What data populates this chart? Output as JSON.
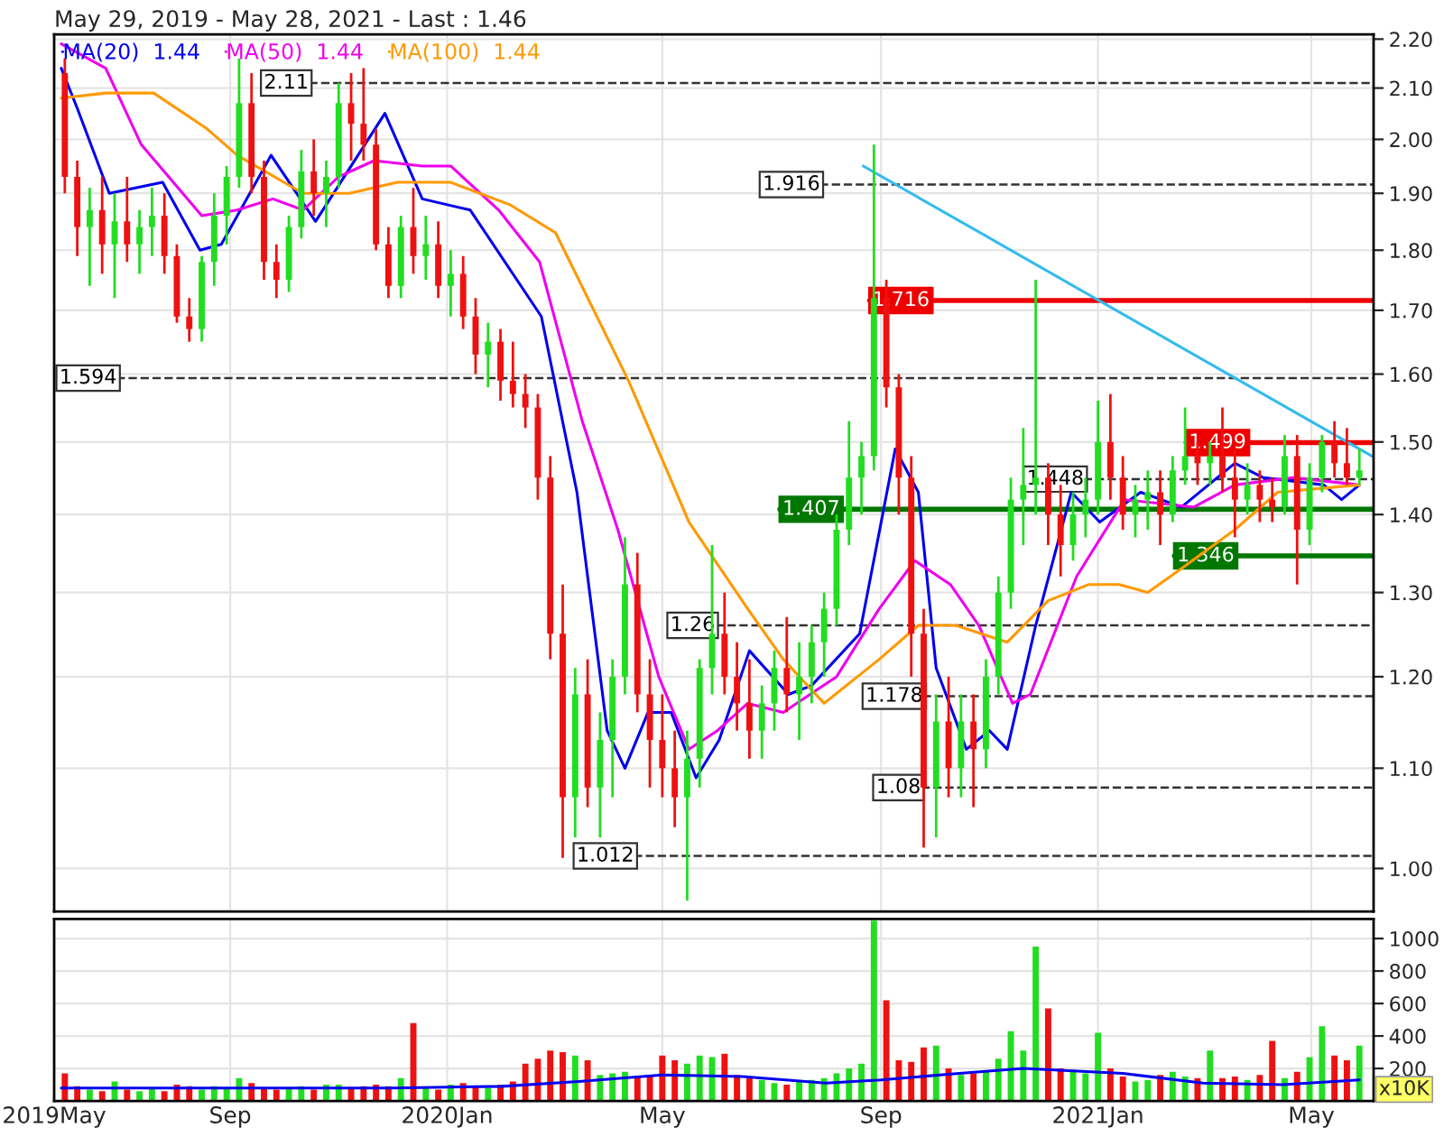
{
  "chart_data": [
    {
      "type": "candlestick",
      "title": "May 29, 2019 - May 28, 2021 - Last : 1.46",
      "x": [
        "2019-05-31",
        "2019-06-07",
        "2019-06-14",
        "2019-06-21",
        "2019-06-28",
        "2019-07-05",
        "2019-07-12",
        "2019-07-19",
        "2019-07-26",
        "2019-08-02",
        "2019-08-09",
        "2019-08-16",
        "2019-08-23",
        "2019-08-30",
        "2019-09-06",
        "2019-09-13",
        "2019-09-20",
        "2019-09-27",
        "2019-10-04",
        "2019-10-11",
        "2019-10-18",
        "2019-10-25",
        "2019-11-01",
        "2019-11-08",
        "2019-11-15",
        "2019-11-22",
        "2019-11-29",
        "2019-12-06",
        "2019-12-13",
        "2019-12-20",
        "2019-12-27",
        "2020-01-03",
        "2020-01-10",
        "2020-01-17",
        "2020-01-24",
        "2020-01-31",
        "2020-02-07",
        "2020-02-14",
        "2020-02-21",
        "2020-02-28",
        "2020-03-06",
        "2020-03-13",
        "2020-03-20",
        "2020-03-27",
        "2020-04-03",
        "2020-04-10",
        "2020-04-17",
        "2020-04-24",
        "2020-05-01",
        "2020-05-08",
        "2020-05-15",
        "2020-05-22",
        "2020-05-29",
        "2020-06-05",
        "2020-06-12",
        "2020-06-19",
        "2020-06-26",
        "2020-07-03",
        "2020-07-10",
        "2020-07-17",
        "2020-07-24",
        "2020-07-31",
        "2020-08-07",
        "2020-08-14",
        "2020-08-21",
        "2020-08-28",
        "2020-09-04",
        "2020-09-11",
        "2020-09-18",
        "2020-09-25",
        "2020-10-02",
        "2020-10-09",
        "2020-10-16",
        "2020-10-23",
        "2020-10-30",
        "2020-11-06",
        "2020-11-13",
        "2020-11-20",
        "2020-11-27",
        "2020-12-04",
        "2020-12-11",
        "2020-12-18",
        "2020-12-25",
        "2021-01-01",
        "2021-01-08",
        "2021-01-15",
        "2021-01-22",
        "2021-01-29",
        "2021-02-05",
        "2021-02-12",
        "2021-02-19",
        "2021-02-26",
        "2021-03-05",
        "2021-03-12",
        "2021-03-19",
        "2021-03-26",
        "2021-04-02",
        "2021-04-09",
        "2021-04-16",
        "2021-04-23",
        "2021-04-30",
        "2021-05-07",
        "2021-05-14",
        "2021-05-21",
        "2021-05-28"
      ],
      "ohlc": [
        [
          2.13,
          2.16,
          1.9,
          1.93
        ],
        [
          1.93,
          1.96,
          1.79,
          1.84
        ],
        [
          1.84,
          1.91,
          1.74,
          1.87
        ],
        [
          1.87,
          1.93,
          1.76,
          1.81
        ],
        [
          1.81,
          1.9,
          1.72,
          1.85
        ],
        [
          1.85,
          1.93,
          1.78,
          1.81
        ],
        [
          1.81,
          1.87,
          1.76,
          1.84
        ],
        [
          1.84,
          1.91,
          1.79,
          1.86
        ],
        [
          1.86,
          1.9,
          1.76,
          1.79
        ],
        [
          1.79,
          1.81,
          1.68,
          1.69
        ],
        [
          1.69,
          1.72,
          1.65,
          1.67
        ],
        [
          1.67,
          1.79,
          1.65,
          1.78
        ],
        [
          1.78,
          1.9,
          1.74,
          1.86
        ],
        [
          1.86,
          1.95,
          1.81,
          1.93
        ],
        [
          1.93,
          2.16,
          1.91,
          2.07
        ],
        [
          2.07,
          2.13,
          1.9,
          1.93
        ],
        [
          1.93,
          1.96,
          1.75,
          1.78
        ],
        [
          1.78,
          1.81,
          1.72,
          1.75
        ],
        [
          1.75,
          1.86,
          1.73,
          1.84
        ],
        [
          1.84,
          1.98,
          1.82,
          1.94
        ],
        [
          1.94,
          2.0,
          1.86,
          1.9
        ],
        [
          1.9,
          1.96,
          1.84,
          1.93
        ],
        [
          1.93,
          2.11,
          1.91,
          2.07
        ],
        [
          2.07,
          2.13,
          1.96,
          2.03
        ],
        [
          2.03,
          2.14,
          1.96,
          1.99
        ],
        [
          1.99,
          2.02,
          1.8,
          1.81
        ],
        [
          1.81,
          1.84,
          1.72,
          1.74
        ],
        [
          1.74,
          1.86,
          1.72,
          1.84
        ],
        [
          1.84,
          1.91,
          1.76,
          1.79
        ],
        [
          1.79,
          1.86,
          1.75,
          1.81
        ],
        [
          1.81,
          1.85,
          1.72,
          1.74
        ],
        [
          1.74,
          1.8,
          1.69,
          1.76
        ],
        [
          1.76,
          1.79,
          1.67,
          1.69
        ],
        [
          1.69,
          1.72,
          1.6,
          1.63
        ],
        [
          1.63,
          1.68,
          1.58,
          1.65
        ],
        [
          1.65,
          1.67,
          1.56,
          1.59
        ],
        [
          1.59,
          1.65,
          1.55,
          1.57
        ],
        [
          1.57,
          1.6,
          1.52,
          1.55
        ],
        [
          1.55,
          1.57,
          1.42,
          1.45
        ],
        [
          1.45,
          1.48,
          1.22,
          1.25
        ],
        [
          1.25,
          1.31,
          1.01,
          1.07
        ],
        [
          1.07,
          1.21,
          1.03,
          1.18
        ],
        [
          1.18,
          1.22,
          1.06,
          1.08
        ],
        [
          1.08,
          1.16,
          1.03,
          1.13
        ],
        [
          1.13,
          1.22,
          1.07,
          1.2
        ],
        [
          1.2,
          1.37,
          1.18,
          1.31
        ],
        [
          1.31,
          1.35,
          1.16,
          1.18
        ],
        [
          1.18,
          1.22,
          1.08,
          1.13
        ],
        [
          1.13,
          1.18,
          1.07,
          1.1
        ],
        [
          1.1,
          1.14,
          1.04,
          1.07
        ],
        [
          1.07,
          1.14,
          0.97,
          1.11
        ],
        [
          1.11,
          1.22,
          1.08,
          1.21
        ],
        [
          1.21,
          1.36,
          1.18,
          1.25
        ],
        [
          1.25,
          1.3,
          1.18,
          1.2
        ],
        [
          1.2,
          1.24,
          1.14,
          1.17
        ],
        [
          1.17,
          1.22,
          1.11,
          1.14
        ],
        [
          1.14,
          1.19,
          1.11,
          1.17
        ],
        [
          1.17,
          1.23,
          1.14,
          1.21
        ],
        [
          1.21,
          1.27,
          1.16,
          1.18
        ],
        [
          1.18,
          1.24,
          1.13,
          1.2
        ],
        [
          1.2,
          1.26,
          1.17,
          1.24
        ],
        [
          1.24,
          1.3,
          1.2,
          1.28
        ],
        [
          1.28,
          1.4,
          1.26,
          1.38
        ],
        [
          1.38,
          1.53,
          1.36,
          1.45
        ],
        [
          1.45,
          1.5,
          1.4,
          1.48
        ],
        [
          1.48,
          1.99,
          1.46,
          1.72
        ],
        [
          1.72,
          1.75,
          1.55,
          1.58
        ],
        [
          1.58,
          1.6,
          1.4,
          1.45
        ],
        [
          1.45,
          1.48,
          1.2,
          1.25
        ],
        [
          1.25,
          1.28,
          1.02,
          1.08
        ],
        [
          1.08,
          1.18,
          1.03,
          1.15
        ],
        [
          1.15,
          1.2,
          1.07,
          1.1
        ],
        [
          1.1,
          1.18,
          1.07,
          1.15
        ],
        [
          1.15,
          1.18,
          1.06,
          1.12
        ],
        [
          1.12,
          1.22,
          1.1,
          1.2
        ],
        [
          1.2,
          1.32,
          1.18,
          1.3
        ],
        [
          1.3,
          1.45,
          1.28,
          1.42
        ],
        [
          1.42,
          1.52,
          1.36,
          1.44
        ],
        [
          1.44,
          1.75,
          1.4,
          1.45
        ],
        [
          1.45,
          1.47,
          1.36,
          1.4
        ],
        [
          1.4,
          1.44,
          1.32,
          1.36
        ],
        [
          1.36,
          1.43,
          1.34,
          1.4
        ],
        [
          1.4,
          1.45,
          1.37,
          1.42
        ],
        [
          1.42,
          1.56,
          1.4,
          1.5
        ],
        [
          1.5,
          1.57,
          1.42,
          1.45
        ],
        [
          1.45,
          1.48,
          1.38,
          1.4
        ],
        [
          1.4,
          1.44,
          1.37,
          1.42
        ],
        [
          1.42,
          1.46,
          1.38,
          1.43
        ],
        [
          1.43,
          1.46,
          1.36,
          1.4
        ],
        [
          1.4,
          1.48,
          1.39,
          1.46
        ],
        [
          1.46,
          1.55,
          1.44,
          1.48
        ],
        [
          1.48,
          1.5,
          1.44,
          1.47
        ],
        [
          1.47,
          1.5,
          1.44,
          1.48
        ],
        [
          1.48,
          1.55,
          1.43,
          1.45
        ],
        [
          1.45,
          1.49,
          1.37,
          1.42
        ],
        [
          1.42,
          1.47,
          1.4,
          1.44
        ],
        [
          1.44,
          1.46,
          1.39,
          1.42
        ],
        [
          1.42,
          1.45,
          1.39,
          1.41
        ],
        [
          1.41,
          1.51,
          1.4,
          1.48
        ],
        [
          1.48,
          1.51,
          1.31,
          1.38
        ],
        [
          1.38,
          1.47,
          1.36,
          1.45
        ],
        [
          1.45,
          1.51,
          1.43,
          1.5
        ],
        [
          1.5,
          1.53,
          1.45,
          1.47
        ],
        [
          1.47,
          1.52,
          1.44,
          1.45
        ],
        [
          1.45,
          1.49,
          1.44,
          1.46
        ]
      ],
      "colors": [
        "#ee1111",
        "#ee1111",
        "#22dd22",
        "#ee1111",
        "#22dd22",
        "#ee1111",
        "#22dd22",
        "#22dd22",
        "#ee1111",
        "#ee1111",
        "#ee1111",
        "#22dd22",
        "#22dd22",
        "#22dd22",
        "#22dd22",
        "#ee1111",
        "#ee1111",
        "#ee1111",
        "#22dd22",
        "#22dd22",
        "#ee1111",
        "#22dd22",
        "#22dd22",
        "#ee1111",
        "#ee1111",
        "#ee1111",
        "#ee1111",
        "#22dd22",
        "#ee1111",
        "#22dd22",
        "#ee1111",
        "#22dd22",
        "#ee1111",
        "#ee1111",
        "#22dd22",
        "#ee1111",
        "#ee1111",
        "#ee1111",
        "#ee1111",
        "#ee1111",
        "#ee1111",
        "#22dd22",
        "#ee1111",
        "#22dd22",
        "#22dd22",
        "#22dd22",
        "#ee1111",
        "#ee1111",
        "#ee1111",
        "#ee1111",
        "#22dd22",
        "#22dd22",
        "#22dd22",
        "#ee1111",
        "#ee1111",
        "#ee1111",
        "#22dd22",
        "#22dd22",
        "#ee1111",
        "#22dd22",
        "#22dd22",
        "#22dd22",
        "#22dd22",
        "#22dd22",
        "#22dd22",
        "#22dd22",
        "#ee1111",
        "#ee1111",
        "#ee1111",
        "#ee1111",
        "#22dd22",
        "#ee1111",
        "#22dd22",
        "#ee1111",
        "#22dd22",
        "#22dd22",
        "#22dd22",
        "#22dd22",
        "#22dd22",
        "#ee1111",
        "#ee1111",
        "#22dd22",
        "#22dd22",
        "#22dd22",
        "#ee1111",
        "#ee1111",
        "#22dd22",
        "#22dd22",
        "#ee1111",
        "#22dd22",
        "#22dd22",
        "#ee1111",
        "#22dd22",
        "#ee1111",
        "#ee1111",
        "#22dd22",
        "#ee1111",
        "#ee1111",
        "#22dd22",
        "#ee1111",
        "#22dd22",
        "#22dd22",
        "#ee1111",
        "#ee1111",
        "#22dd22"
      ],
      "series": [
        {
          "type": "line",
          "name": "MA(20)  1.44",
          "color": "#0000ee",
          "x": [
            "2019-05-29",
            "2019-06-07",
            "2019-06-25",
            "2019-07-25",
            "2019-08-15",
            "2019-08-27",
            "2019-09-24",
            "2019-10-19",
            "2019-11-27",
            "2019-12-18",
            "2020-01-14",
            "2020-02-23",
            "2020-03-14",
            "2020-03-31",
            "2020-04-10",
            "2020-04-23",
            "2020-05-06",
            "2020-05-20",
            "2020-06-02",
            "2020-06-19",
            "2020-07-11",
            "2020-07-24",
            "2020-08-20",
            "2020-09-09",
            "2020-09-22",
            "2020-10-02",
            "2020-10-19",
            "2020-11-01",
            "2020-11-11",
            "2020-11-27",
            "2020-12-17",
            "2021-01-02",
            "2021-01-25",
            "2021-02-17",
            "2021-03-19",
            "2021-04-04",
            "2021-05-08",
            "2021-05-18",
            "2021-05-28"
          ],
          "values": [
            2.14,
            2.06,
            1.9,
            1.92,
            1.8,
            1.81,
            1.97,
            1.85,
            2.05,
            1.89,
            1.87,
            1.69,
            1.43,
            1.14,
            1.1,
            1.16,
            1.16,
            1.09,
            1.13,
            1.23,
            1.18,
            1.19,
            1.25,
            1.49,
            1.43,
            1.21,
            1.12,
            1.14,
            1.12,
            1.26,
            1.43,
            1.39,
            1.43,
            1.41,
            1.47,
            1.45,
            1.44,
            1.42,
            1.44
          ]
        },
        {
          "type": "line",
          "name": "MA(50)  1.44",
          "color": "#ee00ee",
          "x": [
            "2019-05-29",
            "2019-06-23",
            "2019-07-13",
            "2019-08-16",
            "2019-09-05",
            "2019-09-25",
            "2019-10-12",
            "2019-11-01",
            "2019-11-21",
            "2019-12-18",
            "2020-01-03",
            "2020-01-30",
            "2020-02-22",
            "2020-03-17",
            "2020-04-06",
            "2020-04-29",
            "2020-05-16",
            "2020-06-01",
            "2020-06-18",
            "2020-07-08",
            "2020-08-07",
            "2020-08-31",
            "2020-09-20",
            "2020-10-10",
            "2020-10-26",
            "2020-11-14",
            "2020-11-24",
            "2020-12-20",
            "2021-01-16",
            "2021-02-24",
            "2021-03-19",
            "2021-04-21",
            "2021-05-28"
          ],
          "values": [
            2.19,
            2.14,
            1.99,
            1.86,
            1.87,
            1.89,
            1.87,
            1.93,
            1.96,
            1.95,
            1.95,
            1.87,
            1.78,
            1.53,
            1.38,
            1.2,
            1.12,
            1.14,
            1.17,
            1.16,
            1.2,
            1.28,
            1.34,
            1.31,
            1.26,
            1.17,
            1.18,
            1.32,
            1.42,
            1.41,
            1.44,
            1.45,
            1.44
          ]
        },
        {
          "type": "line",
          "name": "MA(100)  1.44",
          "color": "#ff9900",
          "x": [
            "2019-05-29",
            "2019-06-23",
            "2019-07-20",
            "2019-08-19",
            "2019-09-05",
            "2019-10-12",
            "2019-11-07",
            "2019-12-04",
            "2020-01-03",
            "2020-02-05",
            "2020-03-02",
            "2020-04-12",
            "2020-05-16",
            "2020-06-18",
            "2020-07-08",
            "2020-07-31",
            "2020-08-31",
            "2020-09-22",
            "2020-10-13",
            "2020-11-11",
            "2020-12-04",
            "2020-12-27",
            "2021-01-13",
            "2021-01-29",
            "2021-02-17",
            "2021-03-19",
            "2021-04-12",
            "2021-05-28"
          ],
          "values": [
            2.08,
            2.09,
            2.09,
            2.02,
            1.97,
            1.9,
            1.9,
            1.92,
            1.92,
            1.88,
            1.83,
            1.59,
            1.39,
            1.28,
            1.22,
            1.17,
            1.22,
            1.26,
            1.26,
            1.24,
            1.29,
            1.31,
            1.31,
            1.3,
            1.33,
            1.38,
            1.43,
            1.44
          ]
        },
        {
          "type": "line",
          "color": "#33bbee",
          "x": [
            "2020-08-22",
            "2021-06-04"
          ],
          "values": [
            1.95,
            1.48
          ]
        }
      ],
      "ref_lines": [
        {
          "axis": "y",
          "value": 2.11,
          "label": "2.11",
          "line_style": "dashed"
        },
        {
          "axis": "y",
          "value": 1.916,
          "label": "1.916",
          "line_style": "dashed"
        },
        {
          "axis": "y",
          "value": 1.716,
          "label": "1.716",
          "color": "#ee0000",
          "line_style": "solid"
        },
        {
          "axis": "y",
          "value": 1.594,
          "label": "1.594",
          "line_style": "dashed"
        },
        {
          "axis": "y",
          "value": 1.499,
          "label": "1.499",
          "color": "#ee0000",
          "line_style": "solid"
        },
        {
          "axis": "y",
          "value": 1.448,
          "label": "1.448",
          "line_style": "dashed"
        },
        {
          "axis": "y",
          "value": 1.407,
          "label": "1.407",
          "color": "#007700",
          "line_style": "solid"
        },
        {
          "axis": "y",
          "value": 1.346,
          "label": "1.346",
          "color": "#007700",
          "line_style": "solid"
        },
        {
          "axis": "y",
          "value": 1.26,
          "label": "1.26",
          "line_style": "dashed"
        },
        {
          "axis": "y",
          "value": 1.178,
          "label": "1.178",
          "line_style": "dashed"
        },
        {
          "axis": "y",
          "value": 1.08,
          "label": "1.08",
          "line_style": "dashed"
        },
        {
          "axis": "y",
          "value": 1.012,
          "label": "1.012",
          "line_style": "dashed"
        }
      ],
      "log": "y",
      "xlim": [
        "2019-05-25",
        "2021-06-05"
      ],
      "ylim": [
        0.96,
        2.21
      ],
      "yticks": [
        {
          "value": 1.0,
          "label": "1.00"
        },
        {
          "value": 1.1,
          "label": "1.10"
        },
        {
          "value": 1.2,
          "label": "1.20"
        },
        {
          "value": 1.3,
          "label": "1.30"
        },
        {
          "value": 1.4,
          "label": "1.40"
        },
        {
          "value": 1.5,
          "label": "1.50"
        },
        {
          "value": 1.6,
          "label": "1.60"
        },
        {
          "value": 1.7,
          "label": "1.70"
        },
        {
          "value": 1.8,
          "label": "1.80"
        },
        {
          "value": 1.9,
          "label": "1.90"
        },
        {
          "value": 2.0,
          "label": "2.00"
        },
        {
          "value": 2.1,
          "label": "2.10"
        },
        {
          "value": 2.2,
          "label": "2.20"
        }
      ],
      "xticks": [
        {
          "value": "2019-09-01",
          "label": null
        },
        {
          "value": "2020-01-01",
          "label": null
        },
        {
          "value": "2020-05-01",
          "label": null
        },
        {
          "value": "2020-09-01",
          "label": null
        },
        {
          "value": "2021-01-01",
          "label": null
        },
        {
          "value": "2021-05-01",
          "label": null
        }
      ],
      "tick_labels": "y",
      "grid": true,
      "legend": "top left"
    },
    {
      "type": "bar",
      "series": [
        {
          "type": "bar",
          "x": [
            "2019-05-31",
            "2019-06-07",
            "2019-06-14",
            "2019-06-21",
            "2019-06-28",
            "2019-07-05",
            "2019-07-12",
            "2019-07-19",
            "2019-07-26",
            "2019-08-02",
            "2019-08-09",
            "2019-08-16",
            "2019-08-23",
            "2019-08-30",
            "2019-09-06",
            "2019-09-13",
            "2019-09-20",
            "2019-09-27",
            "2019-10-04",
            "2019-10-11",
            "2019-10-18",
            "2019-10-25",
            "2019-11-01",
            "2019-11-08",
            "2019-11-15",
            "2019-11-22",
            "2019-11-29",
            "2019-12-06",
            "2019-12-13",
            "2019-12-20",
            "2019-12-27",
            "2020-01-03",
            "2020-01-10",
            "2020-01-17",
            "2020-01-24",
            "2020-01-31",
            "2020-02-07",
            "2020-02-14",
            "2020-02-21",
            "2020-02-28",
            "2020-03-06",
            "2020-03-13",
            "2020-03-20",
            "2020-03-27",
            "2020-04-03",
            "2020-04-10",
            "2020-04-17",
            "2020-04-24",
            "2020-05-01",
            "2020-05-08",
            "2020-05-15",
            "2020-05-22",
            "2020-05-29",
            "2020-06-05",
            "2020-06-12",
            "2020-06-19",
            "2020-06-26",
            "2020-07-03",
            "2020-07-10",
            "2020-07-17",
            "2020-07-24",
            "2020-07-31",
            "2020-08-07",
            "2020-08-14",
            "2020-08-21",
            "2020-08-28",
            "2020-09-04",
            "2020-09-11",
            "2020-09-18",
            "2020-09-25",
            "2020-10-02",
            "2020-10-09",
            "2020-10-16",
            "2020-10-23",
            "2020-10-30",
            "2020-11-06",
            "2020-11-13",
            "2020-11-20",
            "2020-11-27",
            "2020-12-04",
            "2020-12-11",
            "2020-12-18",
            "2020-12-25",
            "2021-01-01",
            "2021-01-08",
            "2021-01-15",
            "2021-01-22",
            "2021-01-29",
            "2021-02-05",
            "2021-02-12",
            "2021-02-19",
            "2021-02-26",
            "2021-03-05",
            "2021-03-12",
            "2021-03-19",
            "2021-03-26",
            "2021-04-02",
            "2021-04-09",
            "2021-04-16",
            "2021-04-23",
            "2021-04-30",
            "2021-05-07",
            "2021-05-14",
            "2021-05-21",
            "2021-05-28"
          ],
          "values": [
            170,
            90,
            70,
            60,
            120,
            70,
            60,
            80,
            60,
            100,
            90,
            70,
            90,
            80,
            140,
            110,
            80,
            70,
            80,
            90,
            70,
            100,
            100,
            80,
            90,
            100,
            90,
            140,
            480,
            80,
            70,
            100,
            110,
            90,
            80,
            100,
            120,
            230,
            260,
            310,
            300,
            280,
            250,
            160,
            170,
            180,
            150,
            160,
            280,
            250,
            230,
            280,
            270,
            290,
            160,
            140,
            130,
            110,
            100,
            120,
            130,
            140,
            170,
            200,
            230,
            1110,
            620,
            250,
            240,
            330,
            340,
            200,
            160,
            170,
            180,
            260,
            430,
            310,
            950,
            570,
            200,
            190,
            170,
            420,
            200,
            150,
            120,
            130,
            160,
            180,
            150,
            140,
            310,
            140,
            150,
            130,
            160,
            370,
            140,
            180,
            270,
            460,
            280,
            250,
            340
          ],
          "colors": [
            "#ee1111",
            "#ee1111",
            "#22dd22",
            "#ee1111",
            "#22dd22",
            "#ee1111",
            "#22dd22",
            "#22dd22",
            "#ee1111",
            "#ee1111",
            "#ee1111",
            "#22dd22",
            "#22dd22",
            "#22dd22",
            "#22dd22",
            "#ee1111",
            "#ee1111",
            "#ee1111",
            "#22dd22",
            "#22dd22",
            "#ee1111",
            "#22dd22",
            "#22dd22",
            "#ee1111",
            "#ee1111",
            "#ee1111",
            "#ee1111",
            "#22dd22",
            "#ee1111",
            "#22dd22",
            "#ee1111",
            "#22dd22",
            "#ee1111",
            "#ee1111",
            "#22dd22",
            "#ee1111",
            "#ee1111",
            "#ee1111",
            "#ee1111",
            "#ee1111",
            "#ee1111",
            "#22dd22",
            "#ee1111",
            "#22dd22",
            "#22dd22",
            "#22dd22",
            "#ee1111",
            "#ee1111",
            "#ee1111",
            "#ee1111",
            "#22dd22",
            "#22dd22",
            "#22dd22",
            "#ee1111",
            "#ee1111",
            "#ee1111",
            "#22dd22",
            "#22dd22",
            "#ee1111",
            "#22dd22",
            "#22dd22",
            "#22dd22",
            "#22dd22",
            "#22dd22",
            "#22dd22",
            "#22dd22",
            "#ee1111",
            "#ee1111",
            "#ee1111",
            "#ee1111",
            "#22dd22",
            "#ee1111",
            "#22dd22",
            "#ee1111",
            "#22dd22",
            "#22dd22",
            "#22dd22",
            "#22dd22",
            "#22dd22",
            "#ee1111",
            "#ee1111",
            "#22dd22",
            "#22dd22",
            "#22dd22",
            "#ee1111",
            "#ee1111",
            "#22dd22",
            "#22dd22",
            "#ee1111",
            "#22dd22",
            "#22dd22",
            "#ee1111",
            "#22dd22",
            "#ee1111",
            "#ee1111",
            "#22dd22",
            "#ee1111",
            "#ee1111",
            "#22dd22",
            "#ee1111",
            "#22dd22",
            "#22dd22",
            "#ee1111",
            "#ee1111",
            "#22dd22"
          ]
        },
        {
          "type": "line",
          "color": "#0000ee",
          "x": [
            "2019-05-29",
            "2019-12-01",
            "2020-02-01",
            "2020-03-15",
            "2020-05-01",
            "2020-06-15",
            "2020-08-01",
            "2020-09-01",
            "2020-10-15",
            "2020-11-20",
            "2021-01-15",
            "2021-03-01",
            "2021-04-15",
            "2021-05-28"
          ],
          "values": [
            80,
            80,
            90,
            120,
            160,
            150,
            110,
            130,
            170,
            200,
            170,
            110,
            100,
            130
          ]
        }
      ],
      "annotations": [
        "x10K"
      ],
      "xlim": [
        "2019-05-25",
        "2021-06-05"
      ],
      "ylim": [
        0,
        1120
      ],
      "yticks": [
        200,
        400,
        600,
        800,
        1000
      ],
      "xticks": [
        {
          "value": "2019-05-25",
          "label": "2019May"
        },
        {
          "value": "2019-09-01",
          "label": "Sep"
        },
        {
          "value": "2020-01-01",
          "label": "2020Jan"
        },
        {
          "value": "2020-05-01",
          "label": "May"
        },
        {
          "value": "2020-09-01",
          "label": "Sep"
        },
        {
          "value": "2021-01-01",
          "label": "2021Jan"
        },
        {
          "value": "2021-05-01",
          "label": "May"
        }
      ],
      "grid": true
    }
  ]
}
